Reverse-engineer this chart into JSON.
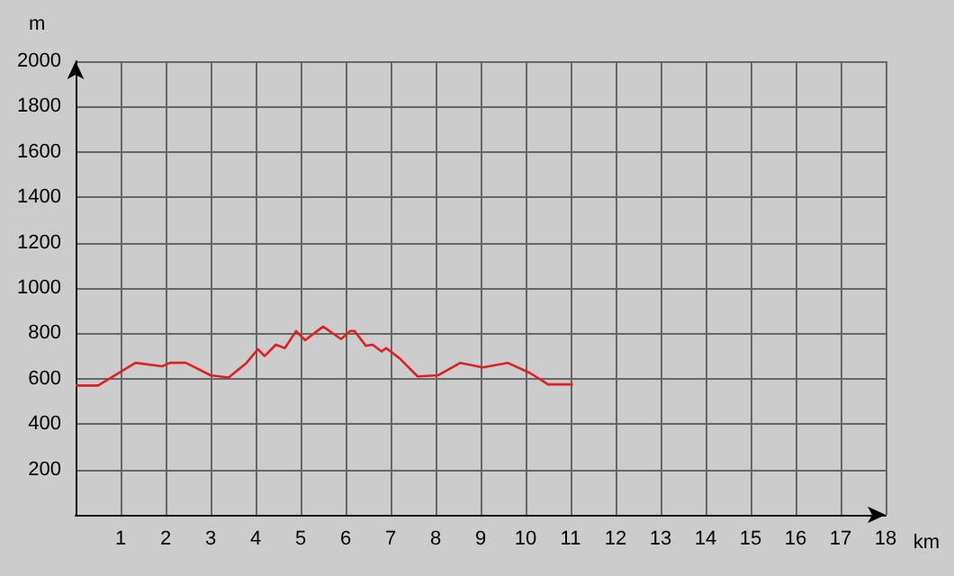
{
  "chart_data": {
    "type": "line",
    "xlabel": "km",
    "ylabel": "m",
    "x": [
      0,
      0.5,
      1.33,
      1.92,
      2.1,
      2.45,
      3.0,
      3.4,
      3.8,
      4.05,
      4.2,
      4.45,
      4.65,
      4.9,
      5.1,
      5.5,
      5.9,
      6.1,
      6.2,
      6.45,
      6.6,
      6.8,
      6.9,
      7.2,
      7.6,
      8.05,
      8.55,
      9.05,
      9.6,
      10.1,
      10.5,
      11.05
    ],
    "series": [
      {
        "color": "#e02020",
        "values": [
          570,
          570,
          670,
          655,
          670,
          670,
          615,
          605,
          670,
          730,
          700,
          750,
          735,
          810,
          770,
          830,
          775,
          810,
          810,
          745,
          750,
          720,
          735,
          690,
          610,
          615,
          670,
          650,
          670,
          625,
          575,
          575
        ]
      }
    ],
    "xlim": [
      0,
      18
    ],
    "xticks": [
      1,
      2,
      3,
      4,
      5,
      6,
      7,
      8,
      9,
      10,
      11,
      12,
      13,
      14,
      15,
      16,
      17,
      18
    ],
    "ylim": [
      0,
      2000
    ],
    "yticks": [
      200,
      400,
      600,
      800,
      1000,
      1200,
      1400,
      1600,
      1800,
      2000
    ],
    "grid": true,
    "marker": "none",
    "line_style": "solid"
  }
}
